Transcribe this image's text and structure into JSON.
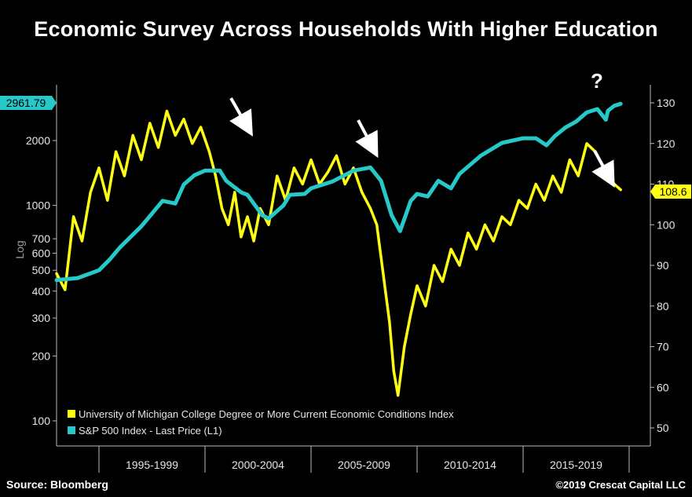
{
  "title": "Economic Survey Across Households With Higher Education",
  "source": "Source: Bloomberg",
  "copyright": "©2019 Crescat Capital LLC",
  "annotation_question": "?",
  "left_axis_scale_label": "Log",
  "colors": {
    "sp500": "#27c8c8",
    "umich": "#ffff14",
    "background": "#000000"
  },
  "chart_data": {
    "type": "line",
    "x_categories": [
      "1995-1999",
      "2000-2004",
      "2005-2009",
      "2010-2014",
      "2015-2019"
    ],
    "xlim": [
      1993.0,
      2021.0
    ],
    "grid": false,
    "legend": "bottom-left",
    "left_axis": {
      "scale": "log",
      "ticks": [
        100,
        200,
        300,
        400,
        500,
        600,
        700,
        1000,
        2000
      ],
      "ylim": [
        85,
        3200
      ],
      "tick_labels": [
        "100",
        "200",
        "300",
        "400",
        "500",
        "600",
        "700",
        "1000",
        "2000"
      ]
    },
    "right_axis": {
      "scale": "linear",
      "ticks": [
        50,
        60,
        70,
        80,
        90,
        100,
        110,
        120,
        130
      ],
      "tick_labels": [
        "50",
        "60",
        "70",
        "80",
        "90",
        "100",
        "110",
        "120",
        "130"
      ],
      "ylim": [
        48,
        132
      ]
    },
    "last_values": {
      "sp500": "2961.79",
      "umich": "108.6"
    },
    "series": [
      {
        "name": "S&P 500 Index - Last Price (L1)",
        "axis": "left",
        "x": [
          1993.0,
          1994.0,
          1995.0,
          1995.5,
          1996.0,
          1997.0,
          1998.0,
          1998.6,
          1999.0,
          1999.5,
          2000.0,
          2000.7,
          2001.0,
          2001.7,
          2002.0,
          2002.7,
          2003.0,
          2003.7,
          2004.0,
          2004.7,
          2005.0,
          2006.0,
          2007.0,
          2007.8,
          2008.3,
          2008.8,
          2009.2,
          2009.7,
          2010.0,
          2010.5,
          2011.0,
          2011.6,
          2012.0,
          2013.0,
          2014.0,
          2015.0,
          2015.6,
          2016.1,
          2016.5,
          2017.0,
          2017.5,
          2018.0,
          2018.5,
          2018.9,
          2019.0,
          2019.3,
          2019.6
        ],
        "y": [
          450,
          460,
          500,
          560,
          640,
          800,
          1050,
          1020,
          1250,
          1380,
          1450,
          1450,
          1300,
          1150,
          1120,
          900,
          870,
          1000,
          1120,
          1130,
          1200,
          1290,
          1450,
          1500,
          1300,
          900,
          760,
          1050,
          1130,
          1100,
          1300,
          1200,
          1400,
          1700,
          1950,
          2050,
          2050,
          1900,
          2100,
          2300,
          2450,
          2700,
          2800,
          2500,
          2750,
          2900,
          2961.79
        ]
      },
      {
        "name": "University of Michigan College Degree or More Current Economic Conditions Index",
        "axis": "right",
        "x": [
          1993.0,
          1993.4,
          1993.8,
          1994.2,
          1994.6,
          1995.0,
          1995.4,
          1995.8,
          1996.2,
          1996.6,
          1997.0,
          1997.4,
          1997.8,
          1998.2,
          1998.6,
          1999.0,
          1999.4,
          1999.8,
          2000.2,
          2000.5,
          2000.8,
          2001.1,
          2001.4,
          2001.7,
          2002.0,
          2002.3,
          2002.6,
          2003.0,
          2003.4,
          2003.8,
          2004.2,
          2004.6,
          2005.0,
          2005.4,
          2005.8,
          2006.2,
          2006.6,
          2007.0,
          2007.4,
          2007.8,
          2008.1,
          2008.4,
          2008.7,
          2008.9,
          2009.1,
          2009.4,
          2009.7,
          2010.0,
          2010.4,
          2010.8,
          2011.2,
          2011.6,
          2012.0,
          2012.4,
          2012.8,
          2013.2,
          2013.6,
          2014.0,
          2014.4,
          2014.8,
          2015.2,
          2015.6,
          2016.0,
          2016.4,
          2016.8,
          2017.2,
          2017.6,
          2018.0,
          2018.4,
          2018.8,
          2019.0,
          2019.3,
          2019.6
        ],
        "y": [
          88,
          84,
          102,
          96,
          108,
          114,
          106,
          118,
          112,
          122,
          116,
          125,
          119,
          128,
          122,
          126,
          120,
          124,
          118,
          112,
          104,
          100,
          108,
          97,
          102,
          96,
          104,
          100,
          112,
          106,
          114,
          110,
          116,
          110,
          113,
          117,
          110,
          114,
          108,
          104,
          100,
          88,
          76,
          64,
          58,
          70,
          78,
          85,
          80,
          90,
          86,
          94,
          90,
          98,
          94,
          100,
          96,
          102,
          100,
          106,
          104,
          110,
          106,
          112,
          108,
          116,
          112,
          120,
          118,
          114,
          112,
          110,
          108.6
        ]
      }
    ]
  }
}
